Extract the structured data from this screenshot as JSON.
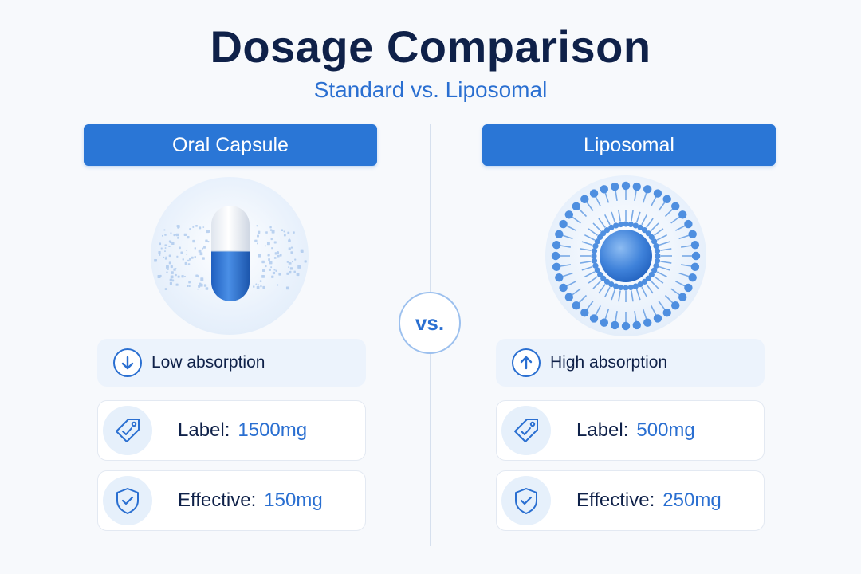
{
  "title": "Dosage Comparison",
  "subtitle": "Standard vs. Liposomal",
  "vs_label": "vs.",
  "colors": {
    "accent": "#2a76d6",
    "dark_text": "#0f2149",
    "value_text": "#2a6fd1",
    "background": "#f7f9fc"
  },
  "left": {
    "header": "Oral Capsule",
    "illustration_icon": "capsule-icon",
    "absorption_icon": "arrow-down-icon",
    "absorption": "Low absorption",
    "label_key": "Label:",
    "label_value": "1500mg",
    "label_icon": "tag-icon",
    "effective_key": "Effective:",
    "effective_value": "150mg",
    "effective_icon": "shield-check-icon"
  },
  "right": {
    "header": "Liposomal",
    "illustration_icon": "liposome-icon",
    "absorption_icon": "arrow-up-icon",
    "absorption": "High absorption",
    "label_key": "Label:",
    "label_value": "500mg",
    "label_icon": "tag-icon",
    "effective_key": "Effective:",
    "effective_value": "250mg",
    "effective_icon": "shield-check-icon"
  }
}
